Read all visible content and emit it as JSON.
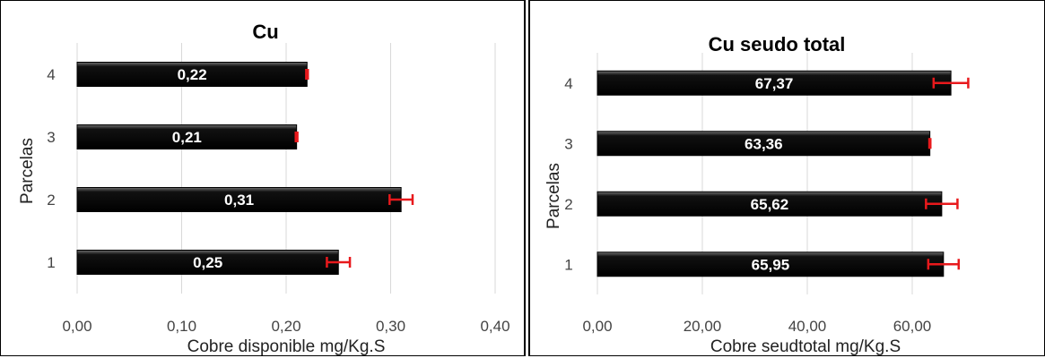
{
  "chart_data": [
    {
      "type": "bar",
      "orientation": "horizontal",
      "title": "Cu",
      "xlabel": "Cobre disponible mg/Kg.S",
      "ylabel": "Parcelas",
      "categories": [
        "1",
        "2",
        "3",
        "4"
      ],
      "values": [
        0.25,
        0.31,
        0.21,
        0.22
      ],
      "data_labels": [
        "0,25",
        "0,31",
        "0,21",
        "0,22"
      ],
      "error": [
        0.011,
        0.011,
        0.0008,
        0.0008
      ],
      "xlim": [
        0,
        0.4
      ],
      "xticks": [
        0,
        0.1,
        0.2,
        0.3,
        0.4
      ],
      "xtick_labels": [
        "0,00",
        "0,10",
        "0,20",
        "0,30",
        "0,40"
      ],
      "grid": true,
      "bar_color": "#000000",
      "error_color": "#e8191c"
    },
    {
      "type": "bar",
      "orientation": "horizontal",
      "title": "Cu seudo total",
      "xlabel": "Cobre seudtotal mg/Kg.S",
      "ylabel": "Parcelas",
      "categories": [
        "1",
        "2",
        "3",
        "4"
      ],
      "values": [
        65.95,
        65.62,
        63.36,
        67.37
      ],
      "data_labels": [
        "65,95",
        "65,62",
        "63,36",
        "67,37"
      ],
      "error": [
        2.9,
        3.0,
        0.1,
        3.3
      ],
      "xlim": [
        0,
        80
      ],
      "xticks": [
        0,
        20,
        40,
        60
      ],
      "xtick_labels": [
        "0,00",
        "20,00",
        "40,00",
        "60,00"
      ],
      "grid": true,
      "bar_color": "#000000",
      "error_color": "#e8191c"
    }
  ]
}
